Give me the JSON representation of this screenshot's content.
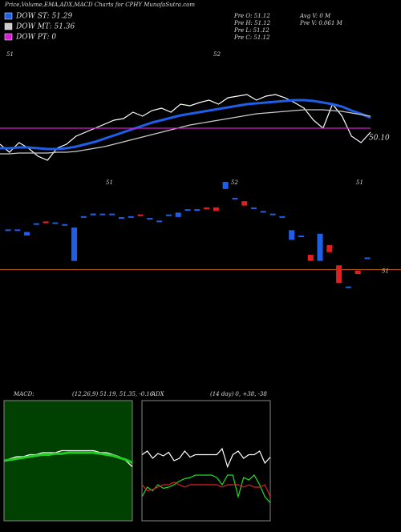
{
  "chart_data": [
    {
      "type": "line",
      "title": "Price,Volume,EMA,ADX,MACD Charts for CPHY MunafaSutra.com",
      "info": [
        "Pre O: 51.12",
        "Pre H: 51.12",
        "Pre L: 51.12",
        "Pre C: 51.12",
        "Avg V: 0 M",
        "Pre V: 0.061 M"
      ],
      "annotations": [
        "51",
        "52",
        "50.10"
      ],
      "ylim": [
        50.35,
        52.0
      ],
      "series": [
        {
          "color": "#ffffff",
          "values": [
            50.8,
            50.7,
            50.82,
            50.75,
            50.65,
            50.6,
            50.75,
            50.8,
            50.9,
            50.95,
            51.0,
            51.05,
            51.1,
            51.12,
            51.2,
            51.15,
            51.22,
            51.25,
            51.2,
            51.3,
            51.28,
            51.32,
            51.35,
            51.3,
            51.38,
            51.4,
            51.42,
            51.35,
            51.4,
            51.42,
            51.38,
            51.32,
            51.25,
            51.1,
            51.0,
            51.3,
            51.15,
            50.9,
            50.82,
            50.95
          ]
        },
        {
          "name": "DOW ST: 51.29",
          "color": "#1f5fe8",
          "values": [
            50.75,
            50.75,
            50.76,
            50.76,
            50.75,
            50.74,
            50.74,
            50.75,
            50.77,
            50.8,
            50.83,
            50.87,
            50.91,
            50.95,
            50.99,
            51.03,
            51.07,
            51.1,
            51.13,
            51.16,
            51.18,
            51.2,
            51.22,
            51.24,
            51.26,
            51.28,
            51.3,
            51.31,
            51.32,
            51.33,
            51.34,
            51.35,
            51.35,
            51.34,
            51.32,
            51.3,
            51.27,
            51.22,
            51.18,
            51.13
          ]
        },
        {
          "name": "DOW MT: 51.36",
          "color": "#cccccc",
          "values": [
            50.68,
            50.68,
            50.69,
            50.69,
            50.69,
            50.69,
            50.7,
            50.7,
            50.71,
            50.73,
            50.75,
            50.77,
            50.8,
            50.83,
            50.86,
            50.89,
            50.92,
            50.95,
            50.98,
            51.01,
            51.04,
            51.06,
            51.08,
            51.1,
            51.12,
            51.14,
            51.16,
            51.18,
            51.19,
            51.2,
            51.21,
            51.22,
            51.23,
            51.23,
            51.23,
            51.22,
            51.21,
            51.19,
            51.17,
            51.15
          ]
        },
        {
          "name": "DOW PT: 0",
          "color": "#d020d0",
          "values": [
            51.0,
            51.0,
            51.0,
            51.0,
            51.0,
            51.0,
            51.0,
            51.0,
            51.0,
            51.0,
            51.0,
            51.0,
            51.0,
            51.0,
            51.0,
            51.0,
            51.0,
            51.0,
            51.0,
            51.0,
            51.0,
            51.0,
            51.0,
            51.0,
            51.0,
            51.0,
            51.0,
            51.0,
            51.0,
            51.0,
            51.0,
            51.0,
            51.0,
            51.0,
            51.0,
            51.0,
            51.0,
            51.0,
            51.0,
            51.0
          ]
        }
      ]
    },
    {
      "type": "candlestick",
      "annotations": [
        "51",
        "52",
        "51"
      ],
      "ylim": [
        50.65,
        52.11
      ],
      "hline": 51,
      "hline_label": "51",
      "hline_color": "#c8641e",
      "up_color": "#1f5fe8",
      "down_color": "#e02020",
      "open": [
        51.45,
        51.45,
        51.39,
        51.52,
        51.55,
        51.53,
        51.51,
        51.1,
        51.6,
        51.62,
        51.63,
        51.63,
        51.59,
        51.6,
        51.63,
        51.58,
        51.55,
        51.62,
        51.6,
        51.68,
        51.68,
        51.71,
        51.71,
        51.92,
        51.81,
        51.78,
        51.7,
        51.66,
        51.63,
        51.6,
        51.34,
        51.38,
        51.17,
        51.1,
        51.28,
        51.05,
        50.8,
        50.99,
        51.13
      ],
      "close": [
        51.45,
        51.45,
        51.43,
        51.52,
        51.53,
        51.53,
        51.51,
        51.48,
        51.6,
        51.64,
        51.63,
        51.63,
        51.59,
        51.6,
        51.61,
        51.58,
        51.55,
        51.62,
        51.65,
        51.68,
        51.68,
        51.69,
        51.67,
        52.0,
        51.81,
        51.73,
        51.7,
        51.66,
        51.63,
        51.6,
        51.45,
        51.38,
        51.1,
        51.41,
        51.2,
        50.85,
        50.8,
        50.95,
        51.13
      ]
    },
    {
      "type": "line",
      "title": "MACD:",
      "subtitle": "(12,26,9) 51.19, 51.35, -0.16",
      "background": "#004000",
      "ylim": [
        -0.3,
        0.3
      ],
      "series": [
        {
          "color": "#ffffff",
          "values": [
            0,
            0.01,
            0.02,
            0.02,
            0.03,
            0.03,
            0.04,
            0.04,
            0.04,
            0.05,
            0.05,
            0.05,
            0.05,
            0.05,
            0.05,
            0.04,
            0.04,
            0.03,
            0.02,
            0.0,
            -0.03
          ]
        },
        {
          "color": "#22cc22",
          "values": [
            0,
            0.005,
            0.01,
            0.015,
            0.02,
            0.025,
            0.03,
            0.03,
            0.035,
            0.035,
            0.04,
            0.04,
            0.04,
            0.04,
            0.04,
            0.035,
            0.03,
            0.025,
            0.015,
            0.005,
            -0.01
          ]
        }
      ]
    },
    {
      "type": "line",
      "title": "ADX",
      "subtitle": "(14 day) 0, +38, -38",
      "background": "#000000",
      "ylim": [
        0,
        100
      ],
      "series": [
        {
          "color": "#ffffff",
          "values": [
            55,
            58,
            52,
            56,
            54,
            57,
            50,
            52,
            58,
            53,
            55,
            55,
            55,
            55,
            55,
            60,
            45,
            55,
            58,
            52,
            55,
            55,
            58,
            48,
            53
          ]
        },
        {
          "color": "#22dd22",
          "values": [
            20,
            28,
            25,
            30,
            27,
            28,
            30,
            33,
            35,
            36,
            38,
            38,
            38,
            38,
            36,
            30,
            38,
            38,
            20,
            36,
            34,
            38,
            30,
            20,
            15
          ]
        },
        {
          "color": "#e02020",
          "values": [
            30,
            25,
            26,
            28,
            30,
            30,
            32,
            30,
            28,
            30,
            30,
            30,
            30,
            30,
            30,
            28,
            30,
            30,
            30,
            28,
            30,
            28,
            28,
            30,
            20
          ]
        }
      ]
    }
  ]
}
